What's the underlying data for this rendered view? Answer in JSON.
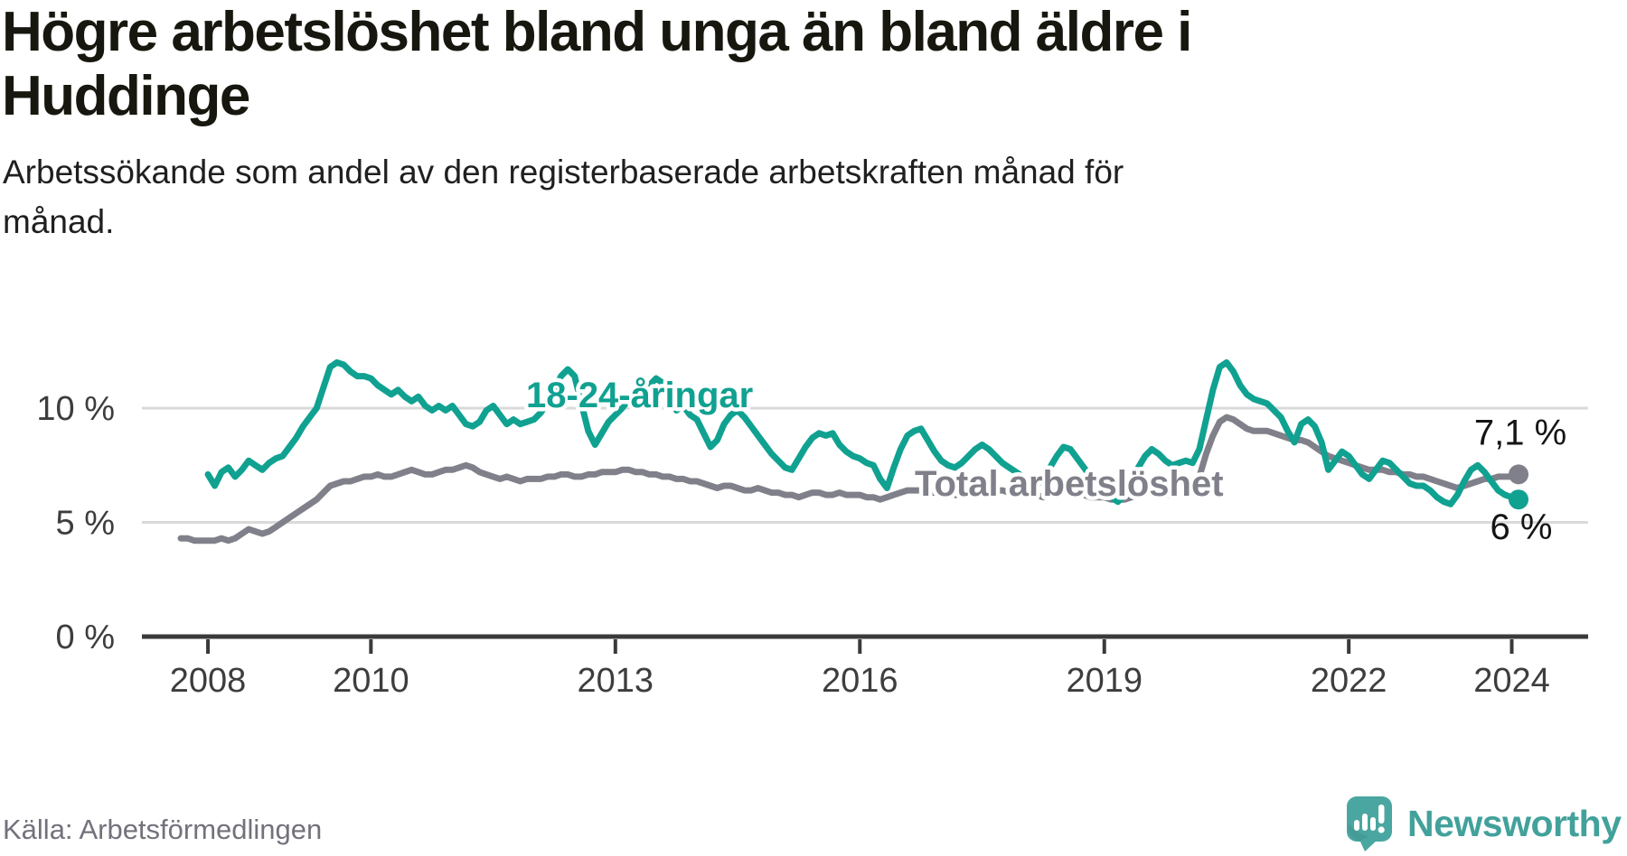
{
  "title": {
    "line1": "Högre arbetslöshet bland unga än bland äldre i",
    "line2": "Huddinge"
  },
  "subtitle": {
    "line1": "Arbetssökande som andel av den registerbaserade arbetskraften månad för",
    "line2": "månad."
  },
  "source": "Källa: Arbetsförmedlingen",
  "brand": {
    "name": "Newsworthy",
    "icon": "newsworthy-speech-bubble-chart-icon",
    "text_color": "#42a19b",
    "icon_color": "#4aa6a0"
  },
  "colors": {
    "youth_line": "#10a191",
    "total_line": "#80808a",
    "gridline": "#dadada",
    "axis": "#3a3a3a",
    "tick_label": "#3d3d3d",
    "annotation_text": "#141414",
    "background": "#ffffff"
  },
  "chart_data": {
    "type": "line",
    "title": "Högre arbetslöshet bland unga än bland äldre i Huddinge",
    "subtitle": "Arbetssökande som andel av den registerbaserade arbetskraften månad för månad.",
    "unit": "%",
    "grid": "horizontal",
    "legend_position": "inline-labels",
    "x_axis": {
      "start_month": "2007-09",
      "end_month": "2024-02",
      "tick_labels": [
        "2008",
        "2010",
        "2013",
        "2016",
        "2019",
        "2022",
        "2024"
      ],
      "tick_month_index": [
        4,
        28,
        64,
        100,
        136,
        172,
        196
      ]
    },
    "y_axis": {
      "tick_labels": [
        "0 %",
        "5 %",
        "10 %"
      ],
      "tick_values": [
        0,
        5,
        10
      ],
      "gridline_values": [
        5,
        10
      ],
      "range": [
        0,
        12.5
      ]
    },
    "series": [
      {
        "name": "Total arbetslöshet",
        "color": "#80808a",
        "start_month": "2007-09",
        "start_offset_months": 0,
        "end_label": "7,1 %",
        "end_value": 7.1,
        "values": [
          4.3,
          4.3,
          4.2,
          4.2,
          4.2,
          4.2,
          4.3,
          4.2,
          4.3,
          4.5,
          4.7,
          4.6,
          4.5,
          4.6,
          4.8,
          5.0,
          5.2,
          5.4,
          5.6,
          5.8,
          6.0,
          6.3,
          6.6,
          6.7,
          6.8,
          6.8,
          6.9,
          7.0,
          7.0,
          7.1,
          7.0,
          7.0,
          7.1,
          7.2,
          7.3,
          7.2,
          7.1,
          7.1,
          7.2,
          7.3,
          7.3,
          7.4,
          7.5,
          7.4,
          7.2,
          7.1,
          7.0,
          6.9,
          7.0,
          6.9,
          6.8,
          6.9,
          6.9,
          6.9,
          7.0,
          7.0,
          7.1,
          7.1,
          7.0,
          7.0,
          7.1,
          7.1,
          7.2,
          7.2,
          7.2,
          7.3,
          7.3,
          7.2,
          7.2,
          7.1,
          7.1,
          7.0,
          7.0,
          6.9,
          6.9,
          6.8,
          6.8,
          6.7,
          6.6,
          6.5,
          6.6,
          6.6,
          6.5,
          6.4,
          6.4,
          6.5,
          6.4,
          6.3,
          6.3,
          6.2,
          6.2,
          6.1,
          6.2,
          6.3,
          6.3,
          6.2,
          6.2,
          6.3,
          6.2,
          6.2,
          6.2,
          6.1,
          6.1,
          6.0,
          6.1,
          6.2,
          6.3,
          6.4,
          6.4,
          6.4,
          6.3,
          6.3,
          6.3,
          6.3,
          6.2,
          6.2,
          6.3,
          6.4,
          6.5,
          6.4,
          6.4,
          6.4,
          6.3,
          6.3,
          6.3,
          6.2,
          6.2,
          6.1,
          6.2,
          6.3,
          6.4,
          6.3,
          6.2,
          6.2,
          6.1,
          6.1,
          6.1,
          6.0,
          6.0,
          6.0,
          6.1,
          6.2,
          6.3,
          6.3,
          6.2,
          6.2,
          6.2,
          6.3,
          6.4,
          6.5,
          7.0,
          8.0,
          8.8,
          9.4,
          9.6,
          9.5,
          9.3,
          9.1,
          9.0,
          9.0,
          9.0,
          8.9,
          8.8,
          8.7,
          8.6,
          8.6,
          8.5,
          8.3,
          8.1,
          7.9,
          7.8,
          7.7,
          7.6,
          7.5,
          7.4,
          7.3,
          7.3,
          7.3,
          7.2,
          7.2,
          7.1,
          7.1,
          7.0,
          7.0,
          6.9,
          6.8,
          6.7,
          6.6,
          6.5,
          6.6,
          6.7,
          6.8,
          6.9,
          6.9,
          7.0,
          7.0,
          7.0,
          7.1
        ]
      },
      {
        "name": "18-24-åringar",
        "color": "#10a191",
        "start_month": "2008-01",
        "start_offset_months": 4,
        "end_label": "6 %",
        "end_value": 6,
        "values": [
          7.1,
          6.6,
          7.2,
          7.4,
          7.0,
          7.3,
          7.7,
          7.5,
          7.3,
          7.6,
          7.8,
          7.9,
          8.3,
          8.7,
          9.2,
          9.6,
          10.0,
          10.9,
          11.8,
          12.0,
          11.9,
          11.6,
          11.4,
          11.4,
          11.3,
          11.0,
          10.8,
          10.6,
          10.8,
          10.5,
          10.3,
          10.5,
          10.1,
          9.9,
          10.1,
          9.9,
          10.1,
          9.7,
          9.3,
          9.2,
          9.4,
          9.9,
          10.1,
          9.7,
          9.3,
          9.5,
          9.3,
          9.4,
          9.5,
          9.8,
          10.2,
          10.8,
          11.4,
          11.7,
          11.4,
          10.2,
          9.0,
          8.4,
          8.9,
          9.4,
          9.7,
          10.0,
          10.4,
          10.2,
          10.6,
          11.0,
          11.3,
          11.1,
          10.4,
          9.9,
          10.1,
          9.7,
          9.5,
          8.9,
          8.3,
          8.6,
          9.3,
          9.7,
          9.9,
          9.6,
          9.2,
          8.8,
          8.4,
          8.0,
          7.7,
          7.4,
          7.3,
          7.8,
          8.3,
          8.7,
          8.9,
          8.8,
          8.9,
          8.4,
          8.1,
          7.9,
          7.8,
          7.6,
          7.5,
          6.9,
          6.5,
          7.4,
          8.2,
          8.8,
          9.0,
          9.1,
          8.6,
          8.1,
          7.7,
          7.5,
          7.4,
          7.6,
          7.9,
          8.2,
          8.4,
          8.2,
          7.9,
          7.6,
          7.4,
          7.2,
          7.0,
          6.8,
          6.6,
          7.0,
          7.4,
          7.9,
          8.3,
          8.2,
          7.8,
          7.4,
          7.0,
          6.6,
          6.3,
          6.1,
          5.9,
          6.2,
          6.7,
          7.4,
          7.9,
          8.2,
          8.0,
          7.7,
          7.5,
          7.6,
          7.7,
          7.6,
          8.2,
          9.5,
          10.8,
          11.8,
          12.0,
          11.6,
          11.0,
          10.6,
          10.4,
          10.3,
          10.2,
          9.9,
          9.6,
          9.0,
          8.5,
          9.3,
          9.5,
          9.2,
          8.5,
          7.3,
          7.7,
          8.1,
          7.9,
          7.5,
          7.1,
          6.9,
          7.3,
          7.7,
          7.6,
          7.3,
          7.0,
          6.7,
          6.6,
          6.6,
          6.4,
          6.1,
          5.9,
          5.8,
          6.2,
          6.8,
          7.3,
          7.5,
          7.2,
          6.8,
          6.4,
          6.2,
          6.1,
          6.0
        ]
      }
    ]
  }
}
